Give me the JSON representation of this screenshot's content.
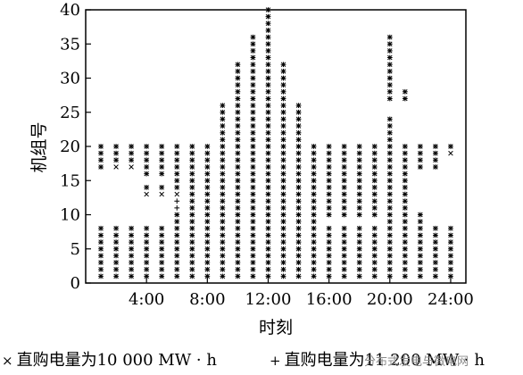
{
  "chart_data": {
    "type": "scatter",
    "xlabel": "时刻",
    "ylabel": "机组号",
    "xlim": [
      0,
      25
    ],
    "ylim": [
      0,
      40
    ],
    "xticks": [
      "4:00",
      "8:00",
      "12:00",
      "16:00",
      "20:00",
      "24:00"
    ],
    "xtick_values": [
      4,
      8,
      12,
      16,
      20,
      24
    ],
    "yticks": [
      0,
      5,
      10,
      15,
      20,
      25,
      30,
      35,
      40
    ],
    "grid": false,
    "legend_position": "bottom",
    "series": [
      {
        "name": "直购电量为10 000 MW · h",
        "marker": "x",
        "columns": [
          {
            "hour": 1,
            "units": [
              [
                1,
                8
              ],
              [
                17,
                20
              ]
            ]
          },
          {
            "hour": 2,
            "units": [
              [
                1,
                8
              ],
              [
                17,
                20
              ]
            ]
          },
          {
            "hour": 3,
            "units": [
              [
                1,
                8
              ],
              [
                17,
                20
              ]
            ]
          },
          {
            "hour": 4,
            "units": [
              [
                1,
                8
              ],
              [
                13,
                14
              ],
              [
                16,
                20
              ]
            ]
          },
          {
            "hour": 5,
            "units": [
              [
                1,
                8
              ],
              [
                13,
                14
              ],
              [
                16,
                20
              ]
            ]
          },
          {
            "hour": 6,
            "units": [
              [
                1,
                10
              ],
              [
                13,
                20
              ]
            ]
          },
          {
            "hour": 7,
            "units": [
              [
                1,
                20
              ]
            ]
          },
          {
            "hour": 8,
            "units": [
              [
                1,
                20
              ]
            ]
          },
          {
            "hour": 9,
            "units": [
              [
                1,
                26
              ]
            ]
          },
          {
            "hour": 10,
            "units": [
              [
                1,
                32
              ]
            ]
          },
          {
            "hour": 11,
            "units": [
              [
                1,
                36
              ]
            ]
          },
          {
            "hour": 12,
            "units": [
              [
                1,
                40
              ]
            ]
          },
          {
            "hour": 13,
            "units": [
              [
                1,
                32
              ]
            ]
          },
          {
            "hour": 14,
            "units": [
              [
                1,
                26
              ]
            ]
          },
          {
            "hour": 15,
            "units": [
              [
                1,
                20
              ]
            ]
          },
          {
            "hour": 16,
            "units": [
              [
                1,
                8
              ],
              [
                10,
                20
              ]
            ]
          },
          {
            "hour": 17,
            "units": [
              [
                1,
                8
              ],
              [
                10,
                20
              ]
            ]
          },
          {
            "hour": 18,
            "units": [
              [
                1,
                8
              ],
              [
                10,
                20
              ]
            ]
          },
          {
            "hour": 19,
            "units": [
              [
                1,
                8
              ],
              [
                10,
                20
              ]
            ]
          },
          {
            "hour": 20,
            "units": [
              [
                1,
                24
              ],
              [
                27,
                36
              ]
            ]
          },
          {
            "hour": 21,
            "units": [
              [
                1,
                20
              ],
              [
                27,
                28
              ]
            ]
          },
          {
            "hour": 22,
            "units": [
              [
                1,
                10
              ],
              [
                17,
                20
              ]
            ]
          },
          {
            "hour": 23,
            "units": [
              [
                1,
                8
              ],
              [
                17,
                20
              ]
            ]
          },
          {
            "hour": 24,
            "units": [
              [
                1,
                8
              ],
              [
                19,
                20
              ]
            ]
          }
        ]
      },
      {
        "name": "直购电量为11 200 MW · h",
        "marker": "+",
        "columns": [
          {
            "hour": 1,
            "units": [
              [
                1,
                8
              ],
              [
                17,
                20
              ]
            ]
          },
          {
            "hour": 2,
            "units": [
              [
                1,
                8
              ],
              [
                18,
                20
              ]
            ]
          },
          {
            "hour": 3,
            "units": [
              [
                1,
                8
              ],
              [
                18,
                20
              ]
            ]
          },
          {
            "hour": 4,
            "units": [
              [
                1,
                8
              ],
              [
                14,
                14
              ],
              [
                16,
                20
              ]
            ]
          },
          {
            "hour": 5,
            "units": [
              [
                1,
                8
              ],
              [
                14,
                14
              ],
              [
                16,
                20
              ]
            ]
          },
          {
            "hour": 6,
            "units": [
              [
                1,
                12
              ],
              [
                14,
                20
              ]
            ]
          },
          {
            "hour": 7,
            "units": [
              [
                1,
                20
              ]
            ]
          },
          {
            "hour": 8,
            "units": [
              [
                1,
                20
              ]
            ]
          },
          {
            "hour": 9,
            "units": [
              [
                1,
                26
              ]
            ]
          },
          {
            "hour": 10,
            "units": [
              [
                1,
                32
              ]
            ]
          },
          {
            "hour": 11,
            "units": [
              [
                1,
                36
              ]
            ]
          },
          {
            "hour": 12,
            "units": [
              [
                1,
                40
              ]
            ]
          },
          {
            "hour": 13,
            "units": [
              [
                1,
                32
              ]
            ]
          },
          {
            "hour": 14,
            "units": [
              [
                1,
                26
              ]
            ]
          },
          {
            "hour": 15,
            "units": [
              [
                1,
                20
              ]
            ]
          },
          {
            "hour": 16,
            "units": [
              [
                1,
                8
              ],
              [
                10,
                20
              ]
            ]
          },
          {
            "hour": 17,
            "units": [
              [
                1,
                8
              ],
              [
                10,
                20
              ]
            ]
          },
          {
            "hour": 18,
            "units": [
              [
                1,
                8
              ],
              [
                10,
                20
              ]
            ]
          },
          {
            "hour": 19,
            "units": [
              [
                1,
                8
              ],
              [
                10,
                20
              ]
            ]
          },
          {
            "hour": 20,
            "units": [
              [
                1,
                24
              ],
              [
                27,
                36
              ]
            ]
          },
          {
            "hour": 21,
            "units": [
              [
                1,
                20
              ],
              [
                27,
                28
              ]
            ]
          },
          {
            "hour": 22,
            "units": [
              [
                1,
                10
              ],
              [
                17,
                20
              ]
            ]
          },
          {
            "hour": 23,
            "units": [
              [
                1,
                8
              ],
              [
                17,
                20
              ]
            ]
          },
          {
            "hour": 24,
            "units": [
              [
                1,
                8
              ],
              [
                20,
                20
              ]
            ]
          }
        ]
      }
    ]
  },
  "legend": {
    "item1_symbol": "×",
    "item1_label": "直购电量为10 000 MW · h",
    "item2_symbol": "+",
    "item2_label": "直购电量为11 200 MW · h"
  },
  "watermark": "分布式发电与微电网"
}
